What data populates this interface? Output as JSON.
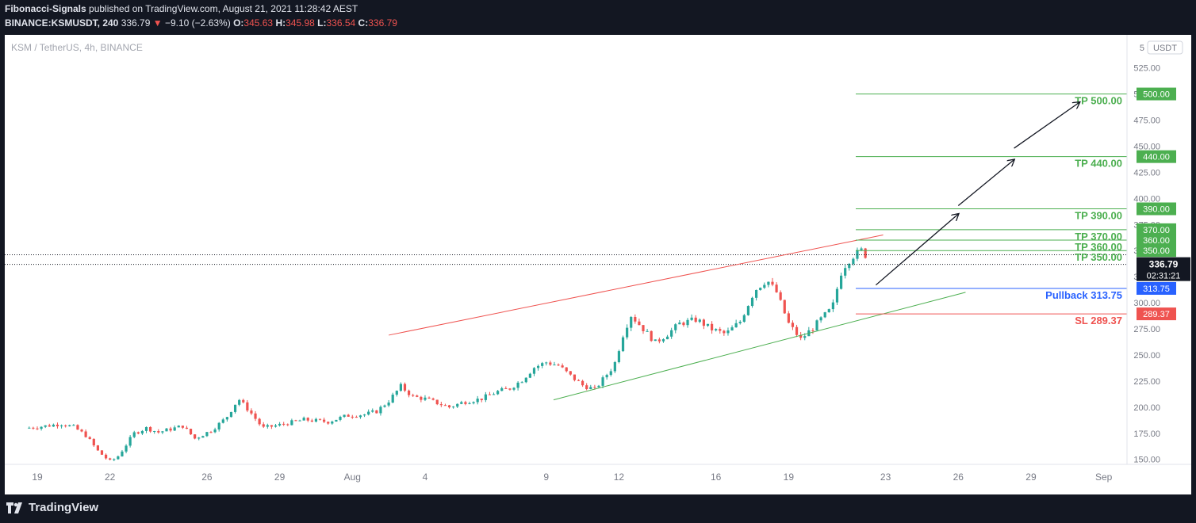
{
  "header": {
    "author": "Fibonacci-Signals",
    "published": "published on TradingView.com, August 21, 2021 11:28:42 AEST",
    "symbol": "BINANCE:KSMUSDT, 240",
    "last": "336.79",
    "change": "−9.10 (−2.63%)",
    "open_label": "O:",
    "open": "345.63",
    "high_label": "H:",
    "high": "345.98",
    "low_label": "L:",
    "low": "336.54",
    "close_label": "C:",
    "close": "336.79"
  },
  "chart": {
    "symbol_line": "KSM / TetherUS, 4h, BINANCE",
    "currency_badge": "USDT",
    "currency_prefix": "5"
  },
  "footer": {
    "brand": "TradingView"
  },
  "colors": {
    "up": "#26a69a",
    "down": "#ef5350",
    "tp": "#4caf50",
    "tp_dark": "#43a047",
    "pullback": "#2962ff",
    "sl": "#ef5350",
    "last_price": "#131722"
  },
  "chart_data": {
    "type": "candlestick",
    "ylim": [
      140,
      545
    ],
    "y_ticks": [
      150,
      175,
      200,
      225,
      250,
      275,
      300,
      325,
      350,
      375,
      400,
      425,
      450,
      475,
      500,
      525
    ],
    "y_tick_labels": [
      "150.00",
      "175.00",
      "200.00",
      "225.00",
      "250.00",
      "275.00",
      "300.00",
      "325.00",
      "350.00",
      "375.00",
      "400.00",
      "425.00",
      "450.00",
      "475.00",
      "500.00",
      "525.00"
    ],
    "x_ticks": [
      "19",
      "22",
      "26",
      "29",
      "Aug",
      "4",
      "9",
      "12",
      "16",
      "19",
      "23",
      "26",
      "29",
      "Sep"
    ],
    "x_tick_days": [
      0,
      3,
      7,
      10,
      13,
      16,
      21,
      24,
      28,
      31,
      35,
      38,
      41,
      44
    ],
    "price_path": [
      [
        -0.5,
        180
      ],
      [
        0,
        181
      ],
      [
        1,
        184
      ],
      [
        1.5,
        181
      ],
      [
        2.0,
        173
      ],
      [
        2.5,
        158
      ],
      [
        3.0,
        148
      ],
      [
        3.3,
        152
      ],
      [
        4.0,
        175
      ],
      [
        4.5,
        180
      ],
      [
        5,
        176
      ],
      [
        6,
        182
      ],
      [
        6.5,
        170
      ],
      [
        7.2,
        178
      ],
      [
        7.8,
        190
      ],
      [
        8.3,
        208
      ],
      [
        8.8,
        195
      ],
      [
        9.3,
        180
      ],
      [
        10,
        183
      ],
      [
        11,
        188
      ],
      [
        12,
        186
      ],
      [
        12.8,
        192
      ],
      [
        13.5,
        193
      ],
      [
        14,
        196
      ],
      [
        14.5,
        206
      ],
      [
        15,
        220
      ],
      [
        15.5,
        210
      ],
      [
        16,
        208
      ],
      [
        17,
        200
      ],
      [
        17.6,
        205
      ],
      [
        18.3,
        208
      ],
      [
        19,
        215
      ],
      [
        19.5,
        218
      ],
      [
        20,
        226
      ],
      [
        20.5,
        238
      ],
      [
        21,
        243
      ],
      [
        21.5,
        240
      ],
      [
        22,
        230
      ],
      [
        22.5,
        221
      ],
      [
        23,
        217
      ],
      [
        23.8,
        240
      ],
      [
        24.2,
        272
      ],
      [
        24.5,
        288
      ],
      [
        25,
        275
      ],
      [
        25.5,
        262
      ],
      [
        26,
        270
      ],
      [
        26.5,
        280
      ],
      [
        27.2,
        284
      ],
      [
        27.8,
        275
      ],
      [
        28.4,
        270
      ],
      [
        29,
        282
      ],
      [
        29.6,
        312
      ],
      [
        30.1,
        322
      ],
      [
        30.5,
        310
      ],
      [
        31,
        280
      ],
      [
        31.5,
        265
      ],
      [
        32,
        276
      ],
      [
        32.4,
        286
      ],
      [
        32.8,
        295
      ],
      [
        33.2,
        332
      ],
      [
        33.6,
        344
      ],
      [
        34,
        350
      ],
      [
        34.2,
        345
      ],
      [
        34.3,
        337
      ]
    ],
    "levels": [
      {
        "label": "TP 500.00",
        "value": 500,
        "tag": "500.00"
      },
      {
        "label": "TP 440.00",
        "value": 440,
        "tag": "440.00"
      },
      {
        "label": "TP 390.00",
        "value": 390,
        "tag": "390.00"
      },
      {
        "label": "TP 370.00",
        "value": 370,
        "tag": "370.00"
      },
      {
        "label": "TP 360.00",
        "value": 360,
        "tag": "360.00"
      },
      {
        "label": "TP 350.00",
        "value": 350,
        "tag": "350.00"
      },
      {
        "label": "Pullback 313.75",
        "value": 313.75,
        "tag": "313.75"
      },
      {
        "label": "SL 289.37",
        "value": 289.37,
        "tag": "289.37"
      }
    ],
    "last_price": 336.79,
    "last_price_tag": "336.79",
    "countdown": "02:31:21",
    "channel_upper": [
      [
        14.5,
        269
      ],
      [
        34.9,
        365
      ]
    ],
    "channel_lower": [
      [
        21.3,
        207
      ],
      [
        38.3,
        310
      ]
    ],
    "arrows": [
      [
        [
          34.6,
          317
        ],
        [
          38.0,
          385
        ]
      ],
      [
        [
          38.0,
          393
        ],
        [
          40.3,
          437
        ]
      ],
      [
        [
          40.3,
          448
        ],
        [
          43.0,
          492
        ]
      ]
    ]
  }
}
